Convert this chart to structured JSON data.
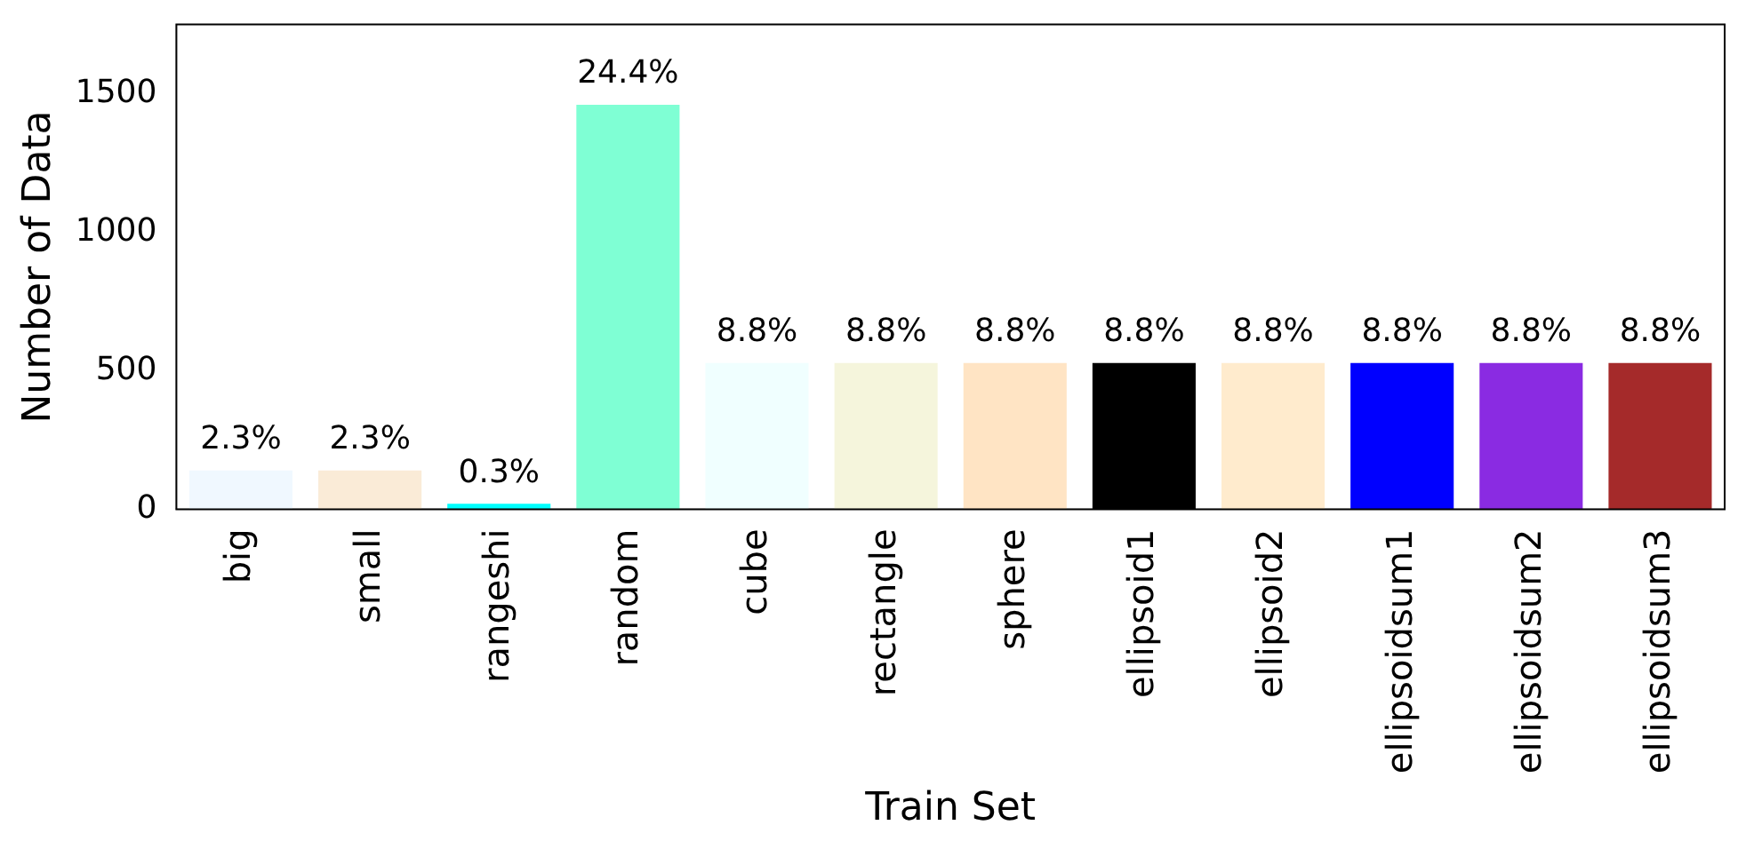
{
  "chart_data": {
    "type": "bar",
    "xlabel": "Train Set",
    "ylabel": "Number of Data",
    "categories": [
      "big",
      "small",
      "rangeshi",
      "random",
      "cube",
      "rectangle",
      "sphere",
      "ellipsoid1",
      "ellipsoid2",
      "ellipsoidsum1",
      "ellipsoidsum2",
      "ellipsoidsum3"
    ],
    "values": [
      140,
      140,
      20,
      1460,
      528,
      528,
      528,
      528,
      528,
      528,
      528,
      528
    ],
    "colors": [
      "#f0f8ff",
      "#faebd7",
      "#00ffff",
      "#7fffd4",
      "#f0ffff",
      "#f5f5dc",
      "#ffe4c4",
      "#000000",
      "#ffebcd",
      "#0000ff",
      "#8a2be2",
      "#a52a2a"
    ],
    "annotations": [
      {
        "text": "2.3%",
        "x": "big",
        "y": 140
      },
      {
        "text": "2.3%",
        "x": "small",
        "y": 140
      },
      {
        "text": "0.3%",
        "x": "rangeshi",
        "y": 20
      },
      {
        "text": "24.4%",
        "x": "random",
        "y": 1460
      },
      {
        "text": "8.8%",
        "x": "cube",
        "y": 528
      },
      {
        "text": "8.8%",
        "x": "rectangle",
        "y": 528
      },
      {
        "text": "8.8%",
        "x": "sphere",
        "y": 528
      },
      {
        "text": "8.8%",
        "x": "ellipsoid1",
        "y": 528
      },
      {
        "text": "8.8%",
        "x": "ellipsoid2",
        "y": 528
      },
      {
        "text": "8.8%",
        "x": "ellipsoidsum1",
        "y": 528
      },
      {
        "text": "8.8%",
        "x": "ellipsoidsum2",
        "y": 528
      },
      {
        "text": "8.8%",
        "x": "ellipsoidsum3",
        "y": 528
      }
    ],
    "ylim": [
      0,
      1750
    ],
    "yticks": [
      0,
      500,
      1000,
      1500
    ],
    "grid": false,
    "legend": false
  }
}
